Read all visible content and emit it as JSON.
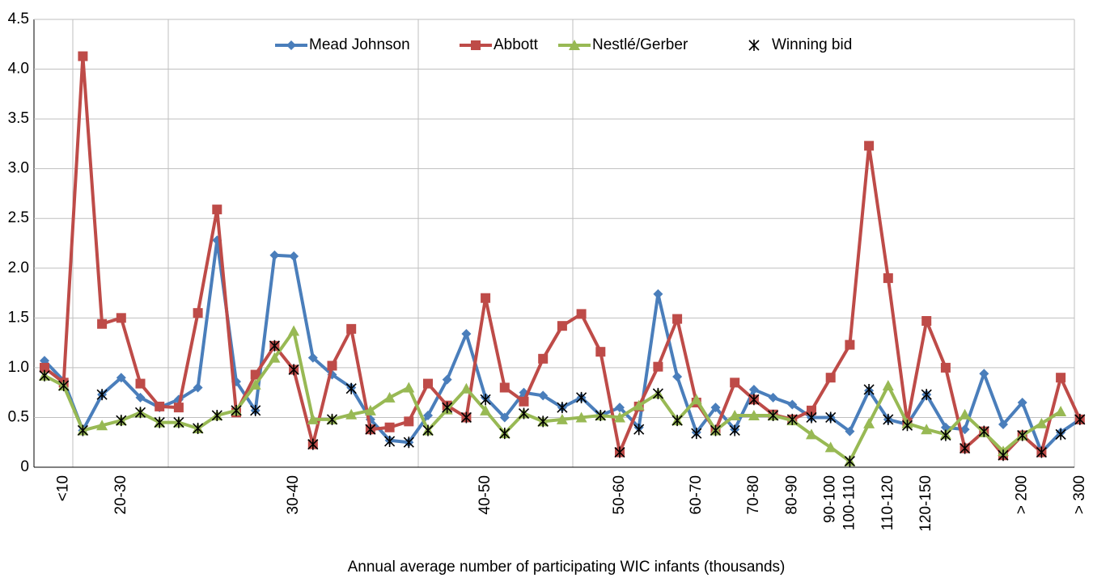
{
  "chart_data": {
    "type": "line",
    "x_label": "Annual average number of participating WIC infants (thousands)",
    "categories": [
      null,
      "<10",
      null,
      null,
      "20-30",
      null,
      null,
      null,
      null,
      null,
      null,
      null,
      null,
      "30-40",
      null,
      null,
      null,
      null,
      null,
      null,
      null,
      null,
      null,
      "40-50",
      null,
      null,
      null,
      null,
      null,
      null,
      "50-60",
      null,
      null,
      null,
      "60-70",
      null,
      null,
      "70-80",
      null,
      "80-90",
      null,
      "90-100",
      "100-110",
      null,
      "110-120",
      null,
      "120-150",
      null,
      null,
      null,
      null,
      "> 200",
      null,
      null,
      "> 300"
    ],
    "series": [
      {
        "name": "Mead Johnson",
        "color": "#4a7ebb",
        "marker": "diamond",
        "line": true,
        "values": [
          1.07,
          0.87,
          0.37,
          0.73,
          0.9,
          0.7,
          0.6,
          0.68,
          0.8,
          2.28,
          0.86,
          0.57,
          2.13,
          2.12,
          1.1,
          0.93,
          0.8,
          0.48,
          0.27,
          0.25,
          0.52,
          0.88,
          1.34,
          0.7,
          0.5,
          0.75,
          0.72,
          0.6,
          0.7,
          0.52,
          0.6,
          0.4,
          1.74,
          0.91,
          0.35,
          0.6,
          0.38,
          0.78,
          0.7,
          0.63,
          0.5,
          0.5,
          0.36,
          0.77,
          0.48,
          0.43,
          0.73,
          0.4,
          0.38,
          0.94,
          0.43,
          0.65,
          0.15,
          0.35,
          0.48
        ]
      },
      {
        "name": "Abbott",
        "color": "#be4b48",
        "marker": "square",
        "line": true,
        "values": [
          1.0,
          0.85,
          4.13,
          1.44,
          1.5,
          0.84,
          0.61,
          0.6,
          1.55,
          2.59,
          0.55,
          0.93,
          1.22,
          0.98,
          0.23,
          1.02,
          1.39,
          0.38,
          0.4,
          0.46,
          0.84,
          0.62,
          0.5,
          1.7,
          0.8,
          0.66,
          1.09,
          1.42,
          1.54,
          1.16,
          0.15,
          0.61,
          1.01,
          1.49,
          0.65,
          0.37,
          0.85,
          0.68,
          0.53,
          0.48,
          0.57,
          0.9,
          1.23,
          3.23,
          1.9,
          0.45,
          1.47,
          1.0,
          0.19,
          0.36,
          0.12,
          0.32,
          0.15,
          0.9,
          0.48
        ]
      },
      {
        "name": "Nestlé/Gerber",
        "color": "#98b954",
        "marker": "triangle",
        "line": true,
        "values": [
          0.92,
          0.82,
          0.37,
          0.42,
          0.47,
          0.55,
          0.45,
          0.45,
          0.39,
          0.52,
          0.57,
          0.83,
          1.1,
          1.37,
          0.48,
          0.48,
          0.53,
          0.57,
          0.7,
          0.8,
          0.37,
          0.58,
          0.79,
          0.57,
          0.34,
          0.54,
          0.46,
          0.48,
          0.5,
          0.52,
          0.5,
          0.62,
          0.74,
          0.47,
          0.68,
          0.37,
          0.52,
          0.52,
          0.52,
          0.47,
          0.33,
          0.2,
          0.06,
          0.44,
          0.82,
          0.44,
          0.38,
          0.33,
          0.53,
          0.35,
          0.16,
          0.32,
          0.44,
          0.56,
          null
        ]
      },
      {
        "name": "Winning bid",
        "color": "#000000",
        "marker": "star",
        "line": false,
        "values": [
          0.92,
          0.82,
          0.37,
          0.73,
          0.47,
          0.55,
          0.45,
          0.45,
          0.39,
          0.52,
          0.57,
          0.57,
          1.22,
          0.98,
          0.23,
          0.48,
          0.79,
          0.38,
          0.26,
          0.25,
          0.37,
          0.6,
          0.5,
          0.68,
          0.34,
          0.54,
          0.46,
          0.6,
          0.7,
          0.52,
          0.15,
          0.38,
          0.74,
          0.47,
          0.34,
          0.37,
          0.37,
          0.68,
          0.52,
          0.48,
          0.5,
          0.5,
          0.06,
          0.78,
          0.48,
          0.42,
          0.73,
          0.32,
          0.19,
          0.36,
          0.12,
          0.32,
          0.15,
          0.33,
          0.48
        ]
      }
    ],
    "ylim": [
      0,
      4.5
    ],
    "yticks": [
      0,
      0.5,
      {
        "value": 1,
        "label": "1.0"
      },
      1.5,
      {
        "value": 2,
        "label": "2.0"
      },
      2.5,
      {
        "value": 3,
        "label": "3.0"
      },
      3.5,
      {
        "value": 4,
        "label": "4.0"
      },
      4.5
    ],
    "grid": true,
    "legend": "top"
  }
}
